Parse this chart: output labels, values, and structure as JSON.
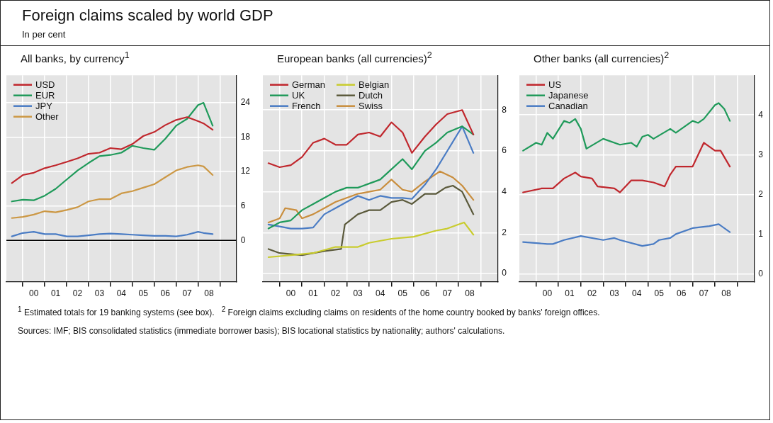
{
  "chart_data": [
    {
      "type": "other",
      "title": "Foreign claims scaled by world GDP",
      "subtitle": "In per cent"
    },
    {
      "type": "line",
      "title": "All banks, by currency$^{1}$",
      "x": [
        "1999-07",
        "2000-01",
        "2000-07",
        "2001-01",
        "2001-07",
        "2002-01",
        "2002-07",
        "2003-01",
        "2003-07",
        "2004-01",
        "2004-07",
        "2005-01",
        "2005-07",
        "2006-01",
        "2006-07",
        "2007-01",
        "2007-07",
        "2008-01",
        "2008-04",
        "2008-09"
      ],
      "series": [
        {
          "name": "USD",
          "color": "#c0272d",
          "values": [
            10.0,
            11.4,
            11.8,
            12.6,
            13.1,
            13.7,
            14.3,
            15.1,
            15.3,
            16.1,
            15.9,
            16.8,
            18.2,
            18.9,
            20.1,
            21.0,
            21.5,
            20.8,
            20.4,
            19.3
          ]
        },
        {
          "name": "EUR",
          "color": "#1f9a5a",
          "values": [
            6.8,
            7.1,
            7.0,
            7.8,
            9.0,
            10.6,
            12.2,
            13.5,
            14.7,
            14.9,
            15.3,
            16.5,
            16.1,
            15.8,
            17.7,
            20.0,
            21.2,
            23.6,
            24.0,
            20.0
          ]
        },
        {
          "name": "JPY",
          "color": "#4a7cc4",
          "values": [
            0.7,
            1.3,
            1.5,
            1.1,
            1.1,
            0.7,
            0.7,
            0.9,
            1.1,
            1.2,
            1.1,
            1.0,
            0.9,
            0.8,
            0.8,
            0.7,
            1.0,
            1.5,
            1.3,
            1.1
          ]
        },
        {
          "name": "Other",
          "color": "#cc9845",
          "values": [
            3.9,
            4.1,
            4.5,
            5.1,
            4.9,
            5.3,
            5.8,
            6.8,
            7.2,
            7.2,
            8.2,
            8.6,
            9.2,
            9.8,
            11.0,
            12.2,
            12.8,
            13.1,
            12.9,
            11.4
          ]
        }
      ],
      "xlim": [
        "1999-04",
        "2009-10"
      ],
      "xticks": [
        {
          "value": "2000-01",
          "label": null
        },
        {
          "value": "2000-07",
          "label": "00"
        },
        {
          "value": "2001-01",
          "label": null
        },
        {
          "value": "2001-07",
          "label": "01"
        },
        {
          "value": "2002-01",
          "label": null
        },
        {
          "value": "2002-07",
          "label": "02"
        },
        {
          "value": "2003-01",
          "label": null
        },
        {
          "value": "2003-07",
          "label": "03"
        },
        {
          "value": "2004-01",
          "label": null
        },
        {
          "value": "2004-07",
          "label": "04"
        },
        {
          "value": "2005-01",
          "label": null
        },
        {
          "value": "2005-07",
          "label": "05"
        },
        {
          "value": "2006-01",
          "label": null
        },
        {
          "value": "2006-07",
          "label": "06"
        },
        {
          "value": "2007-01",
          "label": null
        },
        {
          "value": "2007-07",
          "label": "07"
        },
        {
          "value": "2008-01",
          "label": null
        },
        {
          "value": "2008-07",
          "label": "08"
        },
        {
          "value": "2009-01",
          "label": null
        }
      ],
      "ylim": [
        -7.2,
        28.8
      ],
      "yticks": [
        0,
        6,
        12,
        18,
        24
      ],
      "ref_lines": [
        {
          "axis": "y",
          "value": 0,
          "color": "#000000"
        }
      ],
      "grid": true,
      "legend": "top left",
      "marker": "none",
      "line_style": "solid"
    },
    {
      "type": "line",
      "title": "European banks (all currencies)$^{2}$",
      "series": [
        {
          "name": "German",
          "color": "#c0272d",
          "x": [
            "1999-07",
            "2000-01",
            "2000-07",
            "2001-01",
            "2001-07",
            "2002-01",
            "2002-07",
            "2003-01",
            "2003-07",
            "2004-01",
            "2004-07",
            "2005-01",
            "2005-07",
            "2005-12",
            "2006-07",
            "2007-01",
            "2007-07",
            "2008-03",
            "2008-09"
          ],
          "values": [
            5.4,
            5.2,
            5.3,
            5.7,
            6.4,
            6.6,
            6.3,
            6.3,
            6.8,
            6.9,
            6.7,
            7.4,
            6.9,
            5.9,
            6.7,
            7.3,
            7.8,
            8.0,
            6.8
          ]
        },
        {
          "name": "UK",
          "color": "#1f9a5a",
          "x": [
            "1999-07",
            "2000-01",
            "2000-07",
            "2001-01",
            "2001-07",
            "2002-01",
            "2002-07",
            "2003-01",
            "2003-07",
            "2004-01",
            "2004-07",
            "2005-01",
            "2005-07",
            "2005-12",
            "2006-07",
            "2007-01",
            "2007-07",
            "2008-03",
            "2008-09"
          ],
          "values": [
            2.2,
            2.5,
            2.6,
            3.1,
            3.4,
            3.7,
            4.0,
            4.2,
            4.2,
            4.4,
            4.6,
            5.1,
            5.6,
            5.1,
            6.0,
            6.4,
            6.9,
            7.2,
            6.8
          ]
        },
        {
          "name": "French",
          "color": "#4a7cc4",
          "x": [
            "1999-07",
            "2000-01",
            "2000-07",
            "2001-01",
            "2001-07",
            "2002-01",
            "2002-07",
            "2003-01",
            "2003-07",
            "2004-01",
            "2004-07",
            "2005-01",
            "2005-07",
            "2005-12",
            "2006-07",
            "2007-01",
            "2007-07",
            "2008-03",
            "2008-09"
          ],
          "values": [
            2.4,
            2.3,
            2.2,
            2.2,
            2.25,
            2.9,
            3.2,
            3.5,
            3.8,
            3.6,
            3.8,
            3.7,
            3.7,
            3.65,
            4.35,
            5.1,
            6.0,
            7.2,
            5.9
          ]
        },
        {
          "name": "Belgian",
          "color": "#c9cc2e",
          "x": [
            "1999-07",
            "2000-07",
            "2001-07",
            "2002-07",
            "2003-07",
            "2004-01",
            "2005-01",
            "2006-01",
            "2007-01",
            "2007-07",
            "2008-01",
            "2008-04",
            "2008-09"
          ],
          "values": [
            0.8,
            0.9,
            1.0,
            1.3,
            1.3,
            1.5,
            1.7,
            1.8,
            2.1,
            2.2,
            2.4,
            2.5,
            1.9
          ]
        },
        {
          "name": "Dutch",
          "color": "#5b5a3c",
          "x": [
            "1999-07",
            "2000-01",
            "2001-01",
            "2002-01",
            "2002-10",
            "2002-12",
            "2003-07",
            "2004-01",
            "2004-07",
            "2005-01",
            "2005-07",
            "2005-12",
            "2006-07",
            "2007-01",
            "2007-06",
            "2007-10",
            "2008-03",
            "2008-09"
          ],
          "values": [
            1.2,
            1.0,
            0.9,
            1.1,
            1.2,
            2.4,
            2.9,
            3.1,
            3.1,
            3.5,
            3.6,
            3.4,
            3.9,
            3.9,
            4.2,
            4.3,
            4.0,
            2.9
          ]
        },
        {
          "name": "Swiss",
          "color": "#c98e3e",
          "x": [
            "1999-07",
            "2000-01",
            "2000-04",
            "2000-10",
            "2001-01",
            "2001-07",
            "2002-01",
            "2002-07",
            "2003-01",
            "2003-07",
            "2004-01",
            "2004-07",
            "2005-01",
            "2005-07",
            "2005-12",
            "2006-07",
            "2007-03",
            "2007-10",
            "2008-03",
            "2008-09"
          ],
          "values": [
            2.5,
            2.7,
            3.2,
            3.1,
            2.7,
            2.9,
            3.2,
            3.5,
            3.7,
            3.9,
            4.0,
            4.1,
            4.6,
            4.1,
            4.0,
            4.5,
            5.0,
            4.7,
            4.3,
            3.6
          ]
        }
      ],
      "xlim": [
        "1999-04",
        "2009-10"
      ],
      "xticks": [
        {
          "value": "2000-01",
          "label": null
        },
        {
          "value": "2000-07",
          "label": "00"
        },
        {
          "value": "2001-01",
          "label": null
        },
        {
          "value": "2001-07",
          "label": "01"
        },
        {
          "value": "2002-01",
          "label": null
        },
        {
          "value": "2002-07",
          "label": "02"
        },
        {
          "value": "2003-01",
          "label": null
        },
        {
          "value": "2003-07",
          "label": "03"
        },
        {
          "value": "2004-01",
          "label": null
        },
        {
          "value": "2004-07",
          "label": "04"
        },
        {
          "value": "2005-01",
          "label": null
        },
        {
          "value": "2005-07",
          "label": "05"
        },
        {
          "value": "2006-01",
          "label": null
        },
        {
          "value": "2006-07",
          "label": "06"
        },
        {
          "value": "2007-01",
          "label": null
        },
        {
          "value": "2007-07",
          "label": "07"
        },
        {
          "value": "2008-01",
          "label": null
        },
        {
          "value": "2008-07",
          "label": "08"
        },
        {
          "value": "2009-01",
          "label": null
        }
      ],
      "ylim": [
        -0.4,
        9.7
      ],
      "yticks": [
        0,
        2,
        4,
        6,
        8
      ],
      "grid": true,
      "legend": "top left",
      "marker": "none",
      "line_style": "solid"
    },
    {
      "type": "line",
      "title": "Other banks (all currencies)$^{2}$",
      "series": [
        {
          "name": "US",
          "color": "#c0272d",
          "x": [
            "1999-06",
            "2000-04",
            "2000-10",
            "2001-04",
            "2001-10",
            "2002-01",
            "2002-07",
            "2002-10",
            "2003-07",
            "2003-10",
            "2004-04",
            "2004-10",
            "2005-04",
            "2005-10",
            "2006-01",
            "2006-04",
            "2007-01",
            "2007-07",
            "2008-01",
            "2008-04",
            "2008-09"
          ],
          "values": [
            2.05,
            2.15,
            2.15,
            2.4,
            2.55,
            2.45,
            2.4,
            2.2,
            2.15,
            2.05,
            2.35,
            2.35,
            2.3,
            2.2,
            2.5,
            2.7,
            2.7,
            3.3,
            3.1,
            3.1,
            2.7
          ]
        },
        {
          "name": "Japanese",
          "color": "#1f9a5a",
          "x": [
            "1999-06",
            "2000-01",
            "2000-04",
            "2000-07",
            "2000-10",
            "2001-04",
            "2001-07",
            "2001-10",
            "2002-01",
            "2002-04",
            "2003-01",
            "2003-10",
            "2004-04",
            "2004-07",
            "2004-10",
            "2005-01",
            "2005-04",
            "2006-01",
            "2006-04",
            "2007-01",
            "2007-04",
            "2007-07",
            "2008-01",
            "2008-03",
            "2008-06",
            "2008-09"
          ],
          "values": [
            3.1,
            3.3,
            3.25,
            3.55,
            3.4,
            3.85,
            3.8,
            3.9,
            3.65,
            3.15,
            3.4,
            3.25,
            3.3,
            3.2,
            3.45,
            3.5,
            3.4,
            3.65,
            3.55,
            3.85,
            3.8,
            3.9,
            4.25,
            4.3,
            4.15,
            3.85
          ]
        },
        {
          "name": "Canadian",
          "color": "#4a7cc4",
          "x": [
            "1999-06",
            "2000-07",
            "2000-10",
            "2001-04",
            "2002-01",
            "2003-01",
            "2003-07",
            "2003-10",
            "2004-10",
            "2005-04",
            "2005-07",
            "2006-01",
            "2006-04",
            "2007-01",
            "2007-10",
            "2008-03",
            "2008-09"
          ],
          "values": [
            0.8,
            0.75,
            0.75,
            0.85,
            0.95,
            0.85,
            0.9,
            0.85,
            0.7,
            0.75,
            0.85,
            0.9,
            1.0,
            1.15,
            1.2,
            1.25,
            1.05
          ]
        }
      ],
      "xlim": [
        "1999-04",
        "2009-10"
      ],
      "xticks": [
        {
          "value": "2000-01",
          "label": null
        },
        {
          "value": "2000-07",
          "label": "00"
        },
        {
          "value": "2001-01",
          "label": null
        },
        {
          "value": "2001-07",
          "label": "01"
        },
        {
          "value": "2002-01",
          "label": null
        },
        {
          "value": "2002-07",
          "label": "02"
        },
        {
          "value": "2003-01",
          "label": null
        },
        {
          "value": "2003-07",
          "label": "03"
        },
        {
          "value": "2004-01",
          "label": null
        },
        {
          "value": "2004-07",
          "label": "04"
        },
        {
          "value": "2005-01",
          "label": null
        },
        {
          "value": "2005-07",
          "label": "05"
        },
        {
          "value": "2006-01",
          "label": null
        },
        {
          "value": "2006-07",
          "label": "06"
        },
        {
          "value": "2007-01",
          "label": null
        },
        {
          "value": "2007-07",
          "label": "07"
        },
        {
          "value": "2008-01",
          "label": null
        },
        {
          "value": "2008-07",
          "label": "08"
        },
        {
          "value": "2009-01",
          "label": null
        }
      ],
      "ylim": [
        -0.2,
        5.0
      ],
      "yticks": [
        0,
        1,
        2,
        3,
        4
      ],
      "grid": true,
      "legend": "top left",
      "marker": "none",
      "line_style": "solid"
    },
    {
      "type": "other",
      "annotations": [
        "$^{1}$ Estimated totals for 19 banking systems (see box).",
        "$^{2}$ Foreign claims excluding claims on residents of the home country booked by banks' foreign offices.",
        "Sources: IMF; BIS consolidated statistics (immediate borrower basis); BIS locational statistics by nationality; authors' calculations."
      ]
    }
  ]
}
